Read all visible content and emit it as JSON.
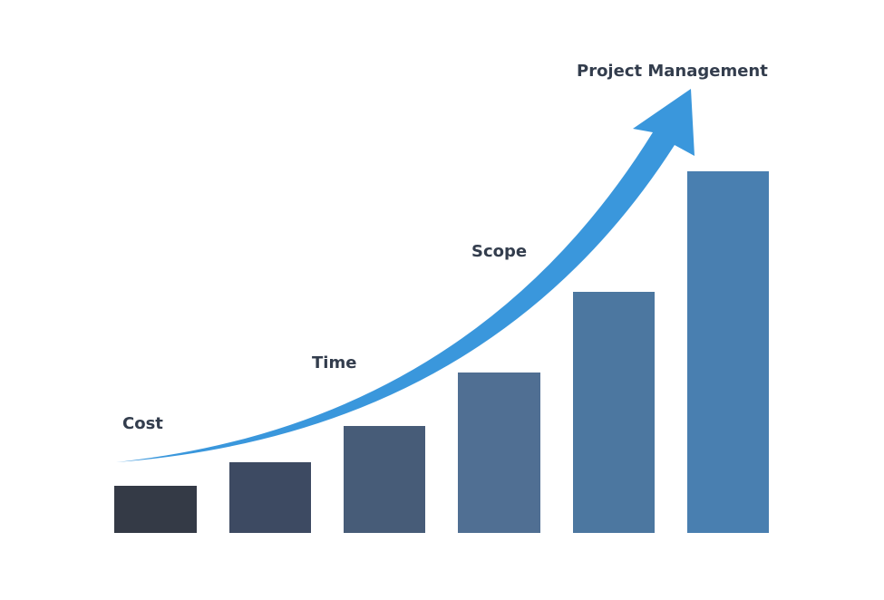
{
  "labels": [
    "Cost",
    "Time",
    "Scope",
    "Project Management"
  ]
}
